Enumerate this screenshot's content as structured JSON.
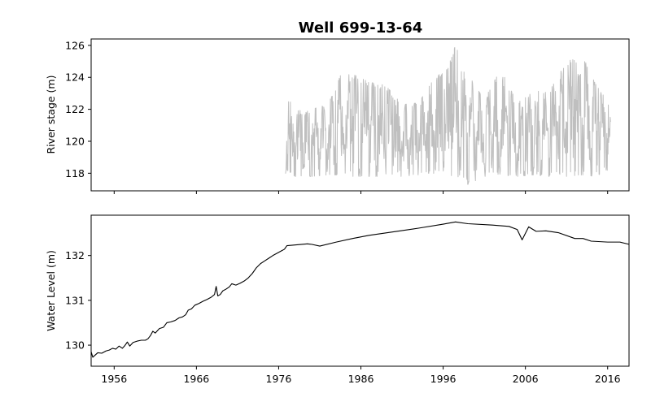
{
  "title": "Well 699-13-64",
  "chart_data": [
    {
      "type": "line",
      "ylabel": "River stage (m)",
      "xlim": [
        1953.2,
        2018.6
      ],
      "ylim": [
        116.9,
        126.4
      ],
      "yticks": [
        118,
        120,
        122,
        124,
        126
      ],
      "series": [
        {
          "color": "#bfbfbf",
          "style": "dense daily river-stage oscillation",
          "x_range": [
            1976.8,
            2016.4
          ],
          "envelope": [
            {
              "x": 1976.8,
              "low": 118.0,
              "high": 121.8
            },
            {
              "x": 1977.3,
              "low": 118.0,
              "high": 123.4
            },
            {
              "x": 1978,
              "low": 117.8,
              "high": 121.9
            },
            {
              "x": 1980,
              "low": 117.8,
              "high": 122.0
            },
            {
              "x": 1982,
              "low": 117.9,
              "high": 122.3
            },
            {
              "x": 1983.5,
              "low": 117.9,
              "high": 124.1
            },
            {
              "x": 1985,
              "low": 117.8,
              "high": 124.2
            },
            {
              "x": 1987,
              "low": 117.8,
              "high": 123.7
            },
            {
              "x": 1989,
              "low": 117.8,
              "high": 123.5
            },
            {
              "x": 1991,
              "low": 117.8,
              "high": 122.3
            },
            {
              "x": 1993,
              "low": 117.9,
              "high": 122.4
            },
            {
              "x": 1995,
              "low": 118.0,
              "high": 124.0
            },
            {
              "x": 1996.5,
              "low": 117.8,
              "high": 124.5
            },
            {
              "x": 1997.5,
              "low": 117.9,
              "high": 126.0
            },
            {
              "x": 1999,
              "low": 117.3,
              "high": 124.2
            },
            {
              "x": 2001,
              "low": 117.8,
              "high": 122.6
            },
            {
              "x": 2003,
              "low": 117.9,
              "high": 124.5
            },
            {
              "x": 2005,
              "low": 117.8,
              "high": 122.4
            },
            {
              "x": 2007,
              "low": 117.9,
              "high": 123.1
            },
            {
              "x": 2009,
              "low": 117.8,
              "high": 123.2
            },
            {
              "x": 2011,
              "low": 117.8,
              "high": 125.0
            },
            {
              "x": 2013,
              "low": 117.9,
              "high": 125.3
            },
            {
              "x": 2014.5,
              "low": 117.8,
              "high": 123.6
            },
            {
              "x": 2016.4,
              "low": 118.3,
              "high": 122.2
            }
          ]
        }
      ]
    },
    {
      "type": "line",
      "ylabel": "Water Level (m)",
      "xlim": [
        1953.2,
        2018.6
      ],
      "ylim": [
        129.53,
        132.9
      ],
      "yticks": [
        130,
        131,
        132
      ],
      "xticks": [
        1956,
        1966,
        1976,
        1986,
        1996,
        2006,
        2016
      ],
      "series": [
        {
          "color": "#000000",
          "points": [
            [
              1953.2,
              129.85
            ],
            [
              1953.4,
              129.73
            ],
            [
              1953.7,
              129.78
            ],
            [
              1954.0,
              129.83
            ],
            [
              1954.5,
              129.82
            ],
            [
              1955.0,
              129.87
            ],
            [
              1955.4,
              129.89
            ],
            [
              1955.8,
              129.93
            ],
            [
              1956.2,
              129.91
            ],
            [
              1956.6,
              129.98
            ],
            [
              1957.0,
              129.93
            ],
            [
              1957.3,
              129.99
            ],
            [
              1957.6,
              130.07
            ],
            [
              1957.9,
              129.98
            ],
            [
              1958.3,
              130.06
            ],
            [
              1958.8,
              130.09
            ],
            [
              1959.3,
              130.11
            ],
            [
              1959.8,
              130.11
            ],
            [
              1960.1,
              130.14
            ],
            [
              1960.4,
              130.21
            ],
            [
              1960.7,
              130.31
            ],
            [
              1961.0,
              130.27
            ],
            [
              1961.5,
              130.37
            ],
            [
              1962.0,
              130.4
            ],
            [
              1962.4,
              130.5
            ],
            [
              1962.9,
              130.52
            ],
            [
              1963.4,
              130.55
            ],
            [
              1963.9,
              130.61
            ],
            [
              1964.3,
              130.63
            ],
            [
              1964.7,
              130.68
            ],
            [
              1965.0,
              130.78
            ],
            [
              1965.4,
              130.81
            ],
            [
              1965.8,
              130.89
            ],
            [
              1966.3,
              130.93
            ],
            [
              1966.8,
              130.98
            ],
            [
              1967.3,
              131.02
            ],
            [
              1967.8,
              131.07
            ],
            [
              1968.2,
              131.13
            ],
            [
              1968.4,
              131.31
            ],
            [
              1968.6,
              131.1
            ],
            [
              1968.9,
              131.13
            ],
            [
              1969.2,
              131.21
            ],
            [
              1969.6,
              131.25
            ],
            [
              1970.0,
              131.3
            ],
            [
              1970.3,
              131.37
            ],
            [
              1970.8,
              131.34
            ],
            [
              1971.3,
              131.38
            ],
            [
              1971.8,
              131.43
            ],
            [
              1972.3,
              131.5
            ],
            [
              1972.8,
              131.6
            ],
            [
              1973.3,
              131.73
            ],
            [
              1973.8,
              131.82
            ],
            [
              1974.3,
              131.88
            ],
            [
              1974.8,
              131.94
            ],
            [
              1975.3,
              132.0
            ],
            [
              1975.8,
              132.05
            ],
            [
              1976.3,
              132.1
            ],
            [
              1976.7,
              132.14
            ],
            [
              1977.0,
              132.22
            ],
            [
              1979.5,
              132.26
            ],
            [
              1980.0,
              132.25
            ],
            [
              1981.0,
              132.21
            ],
            [
              1983.0,
              132.3
            ],
            [
              1985.0,
              132.38
            ],
            [
              1987.0,
              132.45
            ],
            [
              1990.0,
              132.53
            ],
            [
              1993.0,
              132.61
            ],
            [
              1996.0,
              132.7
            ],
            [
              1997.5,
              132.75
            ],
            [
              1999.0,
              132.71
            ],
            [
              2002.0,
              132.68
            ],
            [
              2004.0,
              132.65
            ],
            [
              2005.0,
              132.58
            ],
            [
              2005.6,
              132.35
            ],
            [
              2006.4,
              132.64
            ],
            [
              2007.3,
              132.54
            ],
            [
              2008.5,
              132.55
            ],
            [
              2010.0,
              132.51
            ],
            [
              2012.0,
              132.38
            ],
            [
              2013.0,
              132.38
            ],
            [
              2014.0,
              132.32
            ],
            [
              2016.0,
              132.3
            ],
            [
              2017.5,
              132.3
            ],
            [
              2018.6,
              132.25
            ]
          ]
        }
      ]
    }
  ]
}
